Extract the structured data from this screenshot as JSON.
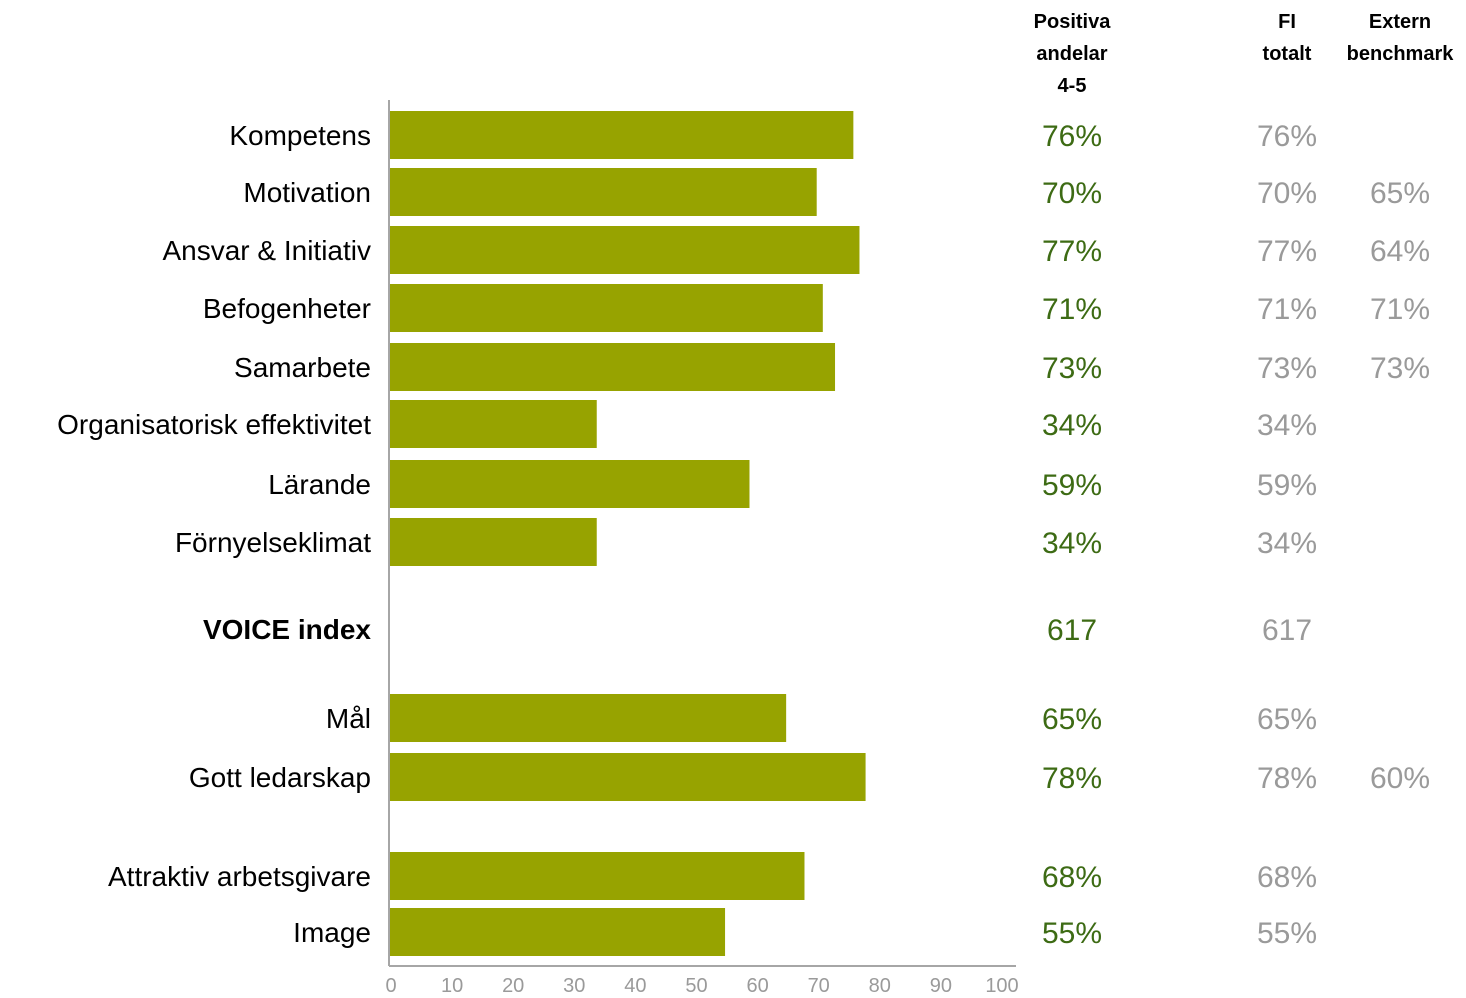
{
  "colors": {
    "bar": "#97a300",
    "positive_text": "#3d6b14",
    "muted_text": "#9a9a9a",
    "axis": "#a6a6a6"
  },
  "column_headers": {
    "positive": [
      "Positiva",
      "andelar",
      "4-5"
    ],
    "fi": [
      "FI",
      "totalt"
    ],
    "external": [
      "Extern",
      "benchmark"
    ]
  },
  "chart_data": {
    "type": "bar",
    "orientation": "horizontal",
    "categories": [
      "Kompetens",
      "Motivation",
      "Ansvar & Initiativ",
      "Befogenheter",
      "Samarbete",
      "Organisatorisk effektivitet",
      "Lärande",
      "Förnyelseklimat",
      "VOICE index",
      "Mål",
      "Gott ledarskap",
      "Attraktiv arbetsgivare",
      "Image"
    ],
    "values": [
      76,
      70,
      77,
      71,
      73,
      34,
      59,
      34,
      null,
      65,
      78,
      68,
      55
    ],
    "xlim": [
      0,
      100
    ],
    "xticks": [
      "0",
      "10",
      "20",
      "30",
      "40",
      "50",
      "60",
      "70",
      "80",
      "90",
      "100"
    ],
    "grid": false,
    "rows": [
      {
        "label": "Kompetens",
        "bold": false,
        "value": 76,
        "positive": "76%",
        "fi": "76%",
        "external": ""
      },
      {
        "label": "Motivation",
        "bold": false,
        "value": 70,
        "positive": "70%",
        "fi": "70%",
        "external": "65%"
      },
      {
        "label": "Ansvar & Initiativ",
        "bold": false,
        "value": 77,
        "positive": "77%",
        "fi": "77%",
        "external": "64%"
      },
      {
        "label": "Befogenheter",
        "bold": false,
        "value": 71,
        "positive": "71%",
        "fi": "71%",
        "external": "71%"
      },
      {
        "label": "Samarbete",
        "bold": false,
        "value": 73,
        "positive": "73%",
        "fi": "73%",
        "external": "73%"
      },
      {
        "label": "Organisatorisk effektivitet",
        "bold": false,
        "value": 34,
        "positive": "34%",
        "fi": "34%",
        "external": ""
      },
      {
        "label": "Lärande",
        "bold": false,
        "value": 59,
        "positive": "59%",
        "fi": "59%",
        "external": ""
      },
      {
        "label": "Förnyelseklimat",
        "bold": false,
        "value": 34,
        "positive": "34%",
        "fi": "34%",
        "external": ""
      },
      {
        "label": "VOICE index",
        "bold": true,
        "value": null,
        "positive": "617",
        "fi": "617",
        "external": ""
      },
      {
        "label": "Mål",
        "bold": false,
        "value": 65,
        "positive": "65%",
        "fi": "65%",
        "external": ""
      },
      {
        "label": "Gott ledarskap",
        "bold": false,
        "value": 78,
        "positive": "78%",
        "fi": "78%",
        "external": "60%"
      },
      {
        "label": "Attraktiv arbetsgivare",
        "bold": false,
        "value": 68,
        "positive": "68%",
        "fi": "68%",
        "external": ""
      },
      {
        "label": "Image",
        "bold": false,
        "value": 55,
        "positive": "55%",
        "fi": "55%",
        "external": ""
      }
    ]
  }
}
